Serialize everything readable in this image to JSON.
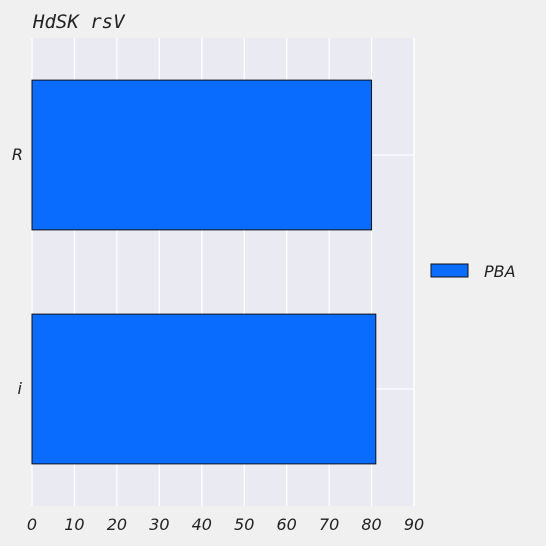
{
  "chart_data": {
    "type": "bar",
    "orientation": "horizontal",
    "title": "HdSK  rsV",
    "categories": [
      "R",
      "i"
    ],
    "series": [
      {
        "name": "PBA",
        "values": [
          80,
          81
        ],
        "color": "#0a6cff"
      }
    ],
    "xlim": [
      0,
      90
    ],
    "xticks": [
      0,
      10,
      20,
      30,
      40,
      50,
      60,
      70,
      80,
      90
    ],
    "grid": true,
    "legend_position": "right",
    "colors": {
      "background": "#f0f0f0",
      "plot_area": "#e9eaf2",
      "grid": "#ffffff",
      "bar_edge": "#111111"
    }
  }
}
